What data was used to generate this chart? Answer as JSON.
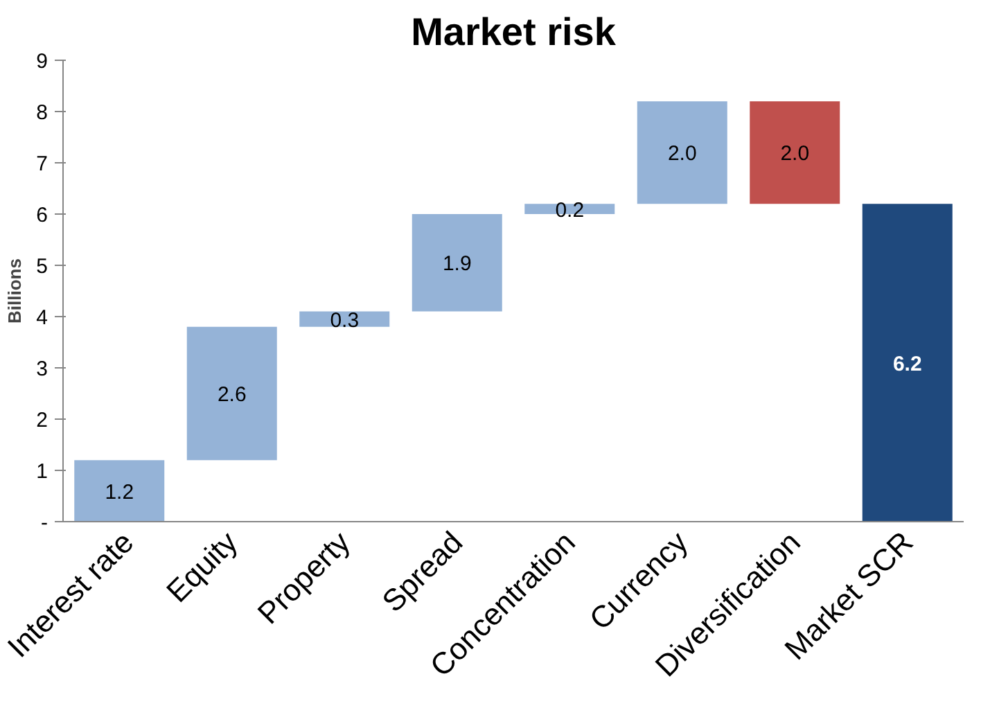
{
  "chart_data": {
    "type": "bar",
    "title": "Market risk",
    "ylabel": "Billions",
    "categories": [
      "Interest rate",
      "Equity",
      "Property",
      "Spread",
      "Concentration",
      "Currency",
      "Diversification",
      "Market SCR"
    ],
    "values": [
      1.2,
      2.6,
      0.3,
      1.9,
      0.2,
      2.0,
      2.0,
      6.2
    ],
    "base": [
      0,
      1.2,
      3.8,
      4.1,
      6.0,
      6.2,
      6.2,
      0
    ],
    "colors": [
      "#95b3d7",
      "#95b3d7",
      "#95b3d7",
      "#95b3d7",
      "#95b3d7",
      "#95b3d7",
      "#c0504d",
      "#1f497d"
    ],
    "value_labels": [
      "1.2",
      "2.6",
      "0.3",
      "1.9",
      "0.2",
      "2.0",
      "2.0",
      "6.2"
    ],
    "ylim": [
      0,
      9
    ],
    "yticks": [
      {
        "value": 0,
        "label": "-"
      },
      1,
      2,
      3,
      4,
      5,
      6,
      7,
      8,
      9
    ],
    "grid": false
  }
}
